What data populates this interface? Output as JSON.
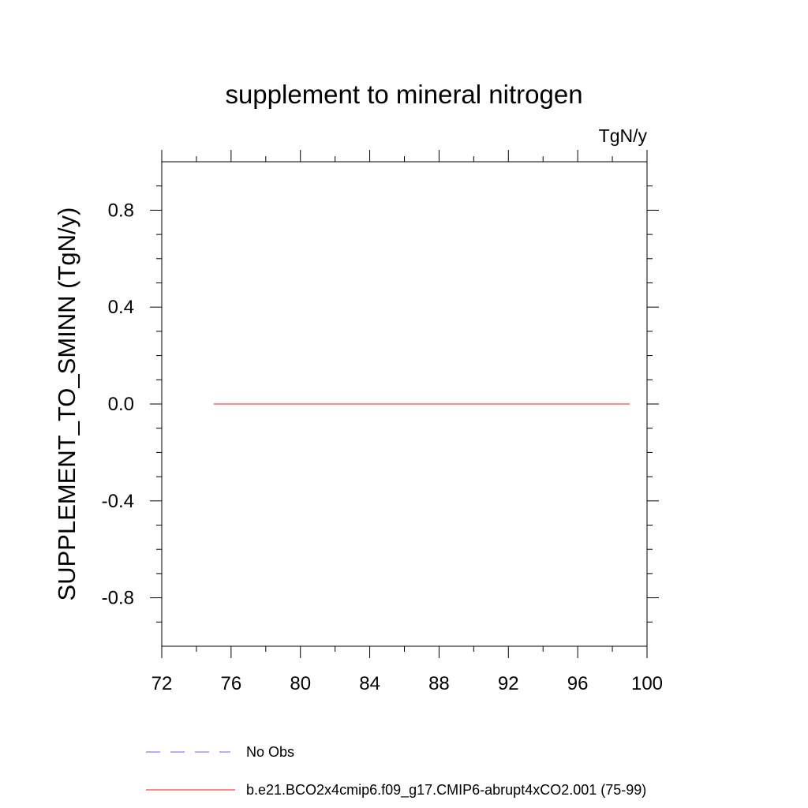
{
  "chart_data": {
    "type": "line",
    "title": "supplement to mineral nitrogen",
    "units_label": "TgN/y",
    "xlabel": "",
    "ylabel": "SUPPLEMENT_TO_SMINN  (TgN/y)",
    "xlim": [
      72,
      100
    ],
    "ylim": [
      -1.0,
      1.0
    ],
    "x_ticks": [
      72,
      76,
      80,
      84,
      88,
      92,
      96,
      100
    ],
    "x_tick_labels": [
      "72",
      "76",
      "80",
      "84",
      "88",
      "92",
      "96",
      "100"
    ],
    "y_ticks": [
      -0.8,
      -0.4,
      0.0,
      0.4,
      0.8
    ],
    "y_tick_labels": [
      "-0.8",
      "-0.4",
      "0.0",
      "0.4",
      "0.8"
    ],
    "y_minor_step": 0.1,
    "x_minor_step": 2,
    "grid": false,
    "legend_position": "bottom",
    "series": [
      {
        "name": "No Obs",
        "color": "#8080ff",
        "dash": "dashed",
        "x": [],
        "values": []
      },
      {
        "name": "b.e21.BCO2x4cmip6.f09_g17.CMIP6-abrupt4xCO2.001 (75-99)",
        "color": "#ff4040",
        "dash": "solid",
        "x": [
          75,
          99
        ],
        "values": [
          0.0,
          0.0
        ]
      }
    ]
  }
}
